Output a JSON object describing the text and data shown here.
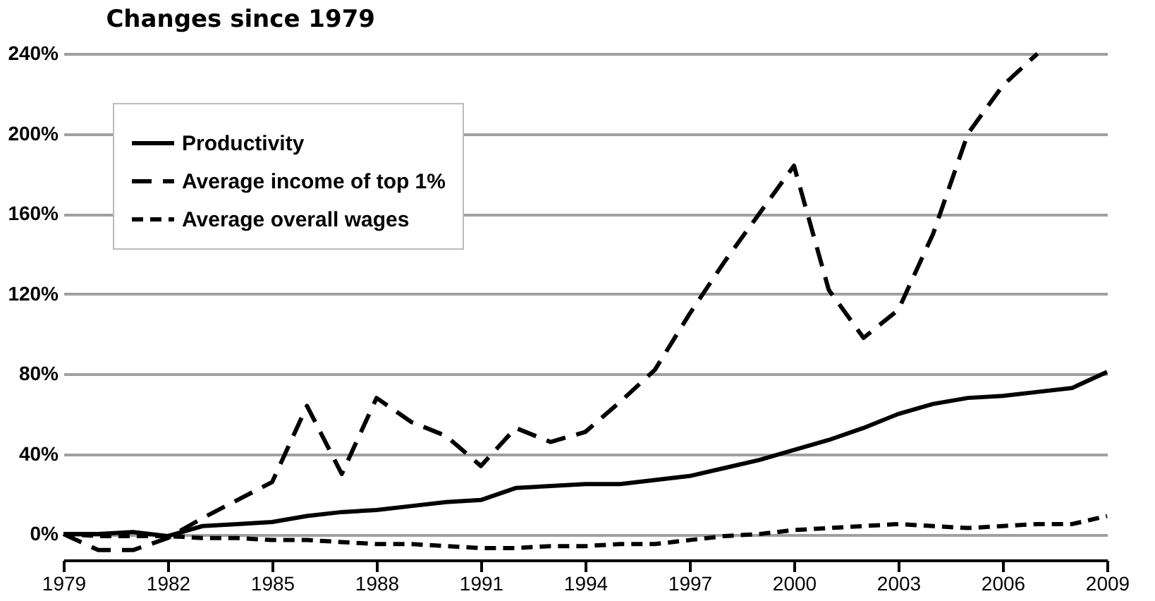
{
  "chart_data": {
    "type": "line",
    "title": "Changes since 1979",
    "x": [
      1979,
      1980,
      1981,
      1982,
      1983,
      1984,
      1985,
      1986,
      1987,
      1988,
      1989,
      1990,
      1991,
      1992,
      1993,
      1994,
      1995,
      1996,
      1997,
      1998,
      1999,
      2000,
      2001,
      2002,
      2003,
      2004,
      2005,
      2006,
      2007,
      2008,
      2009
    ],
    "series": [
      {
        "name": "Productivity",
        "color": "#000000",
        "line_style": "solid",
        "values": [
          0,
          0,
          1,
          -1,
          4,
          5,
          6,
          9,
          11,
          12,
          14,
          16,
          17,
          23,
          24,
          25,
          25,
          27,
          29,
          33,
          37,
          42,
          47,
          53,
          60,
          65,
          68,
          69,
          71,
          73,
          81
        ]
      },
      {
        "name": "Average income of top 1%",
        "color": "#000000",
        "line_style": "dashed",
        "values": [
          0,
          -8,
          -8,
          -2,
          8,
          17,
          26,
          64,
          30,
          68,
          56,
          49,
          34,
          53,
          46,
          51,
          66,
          82,
          110,
          136,
          160,
          184,
          122,
          98,
          112,
          150,
          200,
          224,
          240,
          null,
          null
        ]
      },
      {
        "name": "Average overall wages",
        "color": "#000000",
        "line_style": "dotted",
        "values": [
          0,
          -1,
          -1,
          -1,
          -2,
          -2,
          -3,
          -3,
          -4,
          -5,
          -5,
          -6,
          -7,
          -7,
          -6,
          -6,
          -5,
          -5,
          -3,
          -1,
          0,
          2,
          3,
          4,
          5,
          4,
          3,
          4,
          5,
          5,
          9
        ]
      }
    ],
    "xlim": [
      1979,
      2009
    ],
    "xticks": [
      1979,
      1982,
      1985,
      1988,
      1991,
      1994,
      1997,
      2000,
      2003,
      2006,
      2009
    ],
    "ylim": [
      -13,
      240
    ],
    "yticks": [
      {
        "value": 0,
        "label": "0%"
      },
      {
        "value": 40,
        "label": "40%"
      },
      {
        "value": 80,
        "label": "80%"
      },
      {
        "value": 120,
        "label": "120%"
      },
      {
        "value": 160,
        "label": "160%"
      },
      {
        "value": 200,
        "label": "200%"
      },
      {
        "value": 240,
        "label": "240%"
      }
    ],
    "grid": "y",
    "legend": "top left"
  }
}
